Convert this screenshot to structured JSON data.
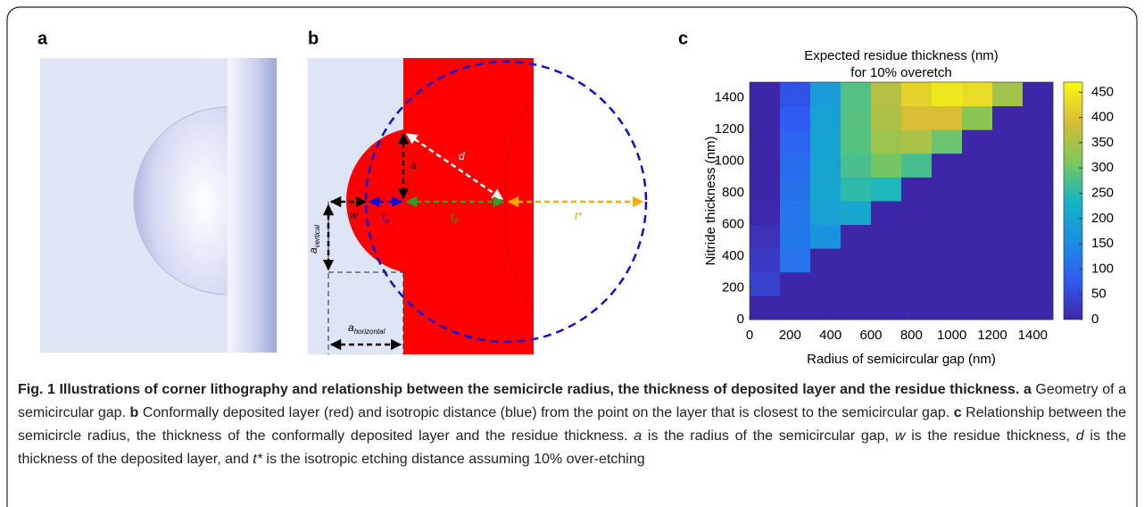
{
  "panels": {
    "a": "a",
    "b": "b",
    "c": "c"
  },
  "panel_b_labels": [
    {
      "text": "a"
    },
    {
      "text": "d"
    },
    {
      "text": "w"
    },
    {
      "text": "t",
      "sub": "a"
    },
    {
      "text": "t",
      "sub": "d"
    },
    {
      "text": "t*"
    },
    {
      "text": "a",
      "sub": "vertical"
    },
    {
      "text": "a",
      "sub": "horizontal"
    }
  ],
  "chart_data": {
    "type": "heatmap",
    "title": [
      "Expected residue thickness (nm)",
      "for 10% overetch"
    ],
    "x_label": "Radius of semicircular gap (nm)",
    "y_label": "Nitride thickness (nm)",
    "x": [
      75,
      225,
      375,
      525,
      675,
      825,
      975,
      1125,
      1275,
      1425
    ],
    "y": [
      75,
      225,
      375,
      525,
      675,
      825,
      975,
      1125,
      1275,
      1425
    ],
    "values": [
      [
        0,
        0,
        0,
        0,
        0,
        0,
        0,
        0,
        0,
        0
      ],
      [
        40,
        0,
        0,
        0,
        0,
        0,
        0,
        0,
        0,
        0
      ],
      [
        30,
        113,
        0,
        0,
        0,
        0,
        0,
        0,
        0,
        0
      ],
      [
        17,
        122,
        165,
        0,
        0,
        0,
        0,
        0,
        0,
        0
      ],
      [
        3,
        119,
        194,
        207,
        0,
        0,
        0,
        0,
        0,
        0
      ],
      [
        0,
        111,
        202,
        254,
        242,
        0,
        0,
        0,
        0,
        0
      ],
      [
        0,
        101,
        203,
        274,
        306,
        272,
        0,
        0,
        0,
        0
      ],
      [
        0,
        90,
        198,
        283,
        338,
        352,
        299,
        0,
        0,
        0
      ],
      [
        0,
        78,
        191,
        284,
        354,
        395,
        394,
        323,
        0,
        0
      ],
      [
        0,
        65,
        182,
        282,
        363,
        419,
        447,
        432,
        344,
        0
      ]
    ],
    "xlim": [
      0,
      1500
    ],
    "ylim": [
      0,
      1500
    ],
    "xticks": [
      0,
      200,
      400,
      600,
      800,
      1000,
      1200,
      1400
    ],
    "yticks": [
      0,
      200,
      400,
      600,
      800,
      1000,
      1200,
      1400
    ],
    "clim": [
      0,
      470
    ],
    "cticks": [
      0,
      50,
      100,
      150,
      200,
      250,
      300,
      350,
      400,
      450
    ],
    "colormap": [
      "#3e26a8",
      "#2e5cf2",
      "#1b8fe0",
      "#14b5c3",
      "#7ec858",
      "#d8bb36",
      "#f9fb14"
    ]
  },
  "caption": [
    {
      "text": "Fig. 1 Illustrations of corner lithography and relationship between the semicircle radius, the thickness of deposited layer and the residue thickness. ",
      "style": "bold"
    },
    {
      "text": "a",
      "style": "bold"
    },
    {
      "text": " Geometry of a semicircular gap. ",
      "style": "normal"
    },
    {
      "text": "b",
      "style": "bold"
    },
    {
      "text": " Conformally deposited layer (red) and isotropic distance (blue) from the point on the layer that is closest to the semicircular gap. ",
      "style": "normal"
    },
    {
      "text": "c",
      "style": "bold"
    },
    {
      "text": " Relationship between the semicircle radius, the thickness of the conformally deposited layer and the residue thickness. ",
      "style": "normal"
    },
    {
      "text": "a",
      "style": "italic"
    },
    {
      "text": " is the radius of the semicircular gap, ",
      "style": "normal"
    },
    {
      "text": "w",
      "style": "italic"
    },
    {
      "text": " is the residue thickness, ",
      "style": "normal"
    },
    {
      "text": "d",
      "style": "italic"
    },
    {
      "text": " is the thickness of the deposited layer, and ",
      "style": "normal"
    },
    {
      "text": "t*",
      "style": "italic"
    },
    {
      "text": " is the isotropic etching distance assuming 10% over-etching",
      "style": "normal"
    }
  ]
}
